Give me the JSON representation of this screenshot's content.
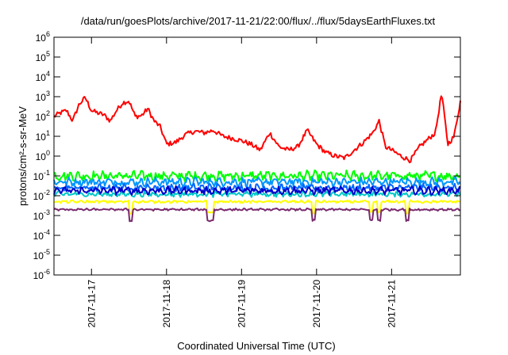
{
  "chart_data": {
    "type": "line",
    "title": "/data/run/goesPlots/archive/2017-11-21/22:00/flux/../flux/5daysEarthFluxes.txt",
    "xlabel": "Coordinated Universal Time (UTC)",
    "ylabel": "protons/cm²-s-sr-MeV",
    "y_scale": "log",
    "ylim_exp": [
      -6,
      6
    ],
    "y_ticks": [
      {
        "base": "10",
        "exp": "-6"
      },
      {
        "base": "10",
        "exp": "-5"
      },
      {
        "base": "10",
        "exp": "-4"
      },
      {
        "base": "10",
        "exp": "-3"
      },
      {
        "base": "10",
        "exp": "-2"
      },
      {
        "base": "10",
        "exp": "-1"
      },
      {
        "base": "10",
        "exp": "0"
      },
      {
        "base": "10",
        "exp": "1"
      },
      {
        "base": "10",
        "exp": "2"
      },
      {
        "base": "10",
        "exp": "3"
      },
      {
        "base": "10",
        "exp": "4"
      },
      {
        "base": "10",
        "exp": "5"
      },
      {
        "base": "10",
        "exp": "6"
      }
    ],
    "xlim": [
      "2017-11-16T12:00",
      "2017-11-21T22:00"
    ],
    "x_ticks": [
      {
        "label": "2017-11-17",
        "t": "2017-11-17T00:00"
      },
      {
        "label": "2017-11-18",
        "t": "2017-11-18T00:00"
      },
      {
        "label": "2017-11-19",
        "t": "2017-11-19T00:00"
      },
      {
        "label": "2017-11-20",
        "t": "2017-11-20T00:00"
      },
      {
        "label": "2017-11-21",
        "t": "2017-11-21T00:00"
      }
    ],
    "grid": false,
    "series": [
      {
        "color": "#ff0000",
        "t": [
          "2017-11-16T12:00",
          "2017-11-16T14:00",
          "2017-11-16T16:00",
          "2017-11-16T18:00",
          "2017-11-16T20:00",
          "2017-11-16T22:00",
          "2017-11-17T00:00",
          "2017-11-17T02:00",
          "2017-11-17T04:00",
          "2017-11-17T06:00",
          "2017-11-17T08:00",
          "2017-11-17T10:00",
          "2017-11-17T12:00",
          "2017-11-17T14:00",
          "2017-11-17T16:00",
          "2017-11-17T18:00",
          "2017-11-17T20:00",
          "2017-11-17T22:00",
          "2017-11-18T00:00",
          "2017-11-18T03:00",
          "2017-11-18T06:00",
          "2017-11-18T09:00",
          "2017-11-18T12:00",
          "2017-11-18T15:00",
          "2017-11-18T18:00",
          "2017-11-18T21:00",
          "2017-11-19T00:00",
          "2017-11-19T03:00",
          "2017-11-19T06:00",
          "2017-11-19T09:00",
          "2017-11-19T12:00",
          "2017-11-19T15:00",
          "2017-11-19T18:00",
          "2017-11-19T21:00",
          "2017-11-20T00:00",
          "2017-11-20T03:00",
          "2017-11-20T06:00",
          "2017-11-20T09:00",
          "2017-11-20T12:00",
          "2017-11-20T15:00",
          "2017-11-20T18:00",
          "2017-11-20T20:00",
          "2017-11-20T22:00",
          "2017-11-21T00:00",
          "2017-11-21T03:00",
          "2017-11-21T06:00",
          "2017-11-21T09:00",
          "2017-11-21T12:00",
          "2017-11-21T14:00",
          "2017-11-21T16:00",
          "2017-11-21T18:00",
          "2017-11-21T20:00",
          "2017-11-21T22:00"
        ],
        "values": [
          100,
          150,
          200,
          60,
          400,
          900,
          200,
          150,
          120,
          60,
          200,
          500,
          600,
          100,
          110,
          250,
          60,
          30,
          4,
          5,
          12,
          18,
          15,
          20,
          10,
          8,
          6,
          4,
          2,
          15,
          3,
          2,
          3,
          20,
          4,
          1.5,
          1,
          0.8,
          2,
          5,
          15,
          60,
          3,
          2,
          1,
          0.6,
          3,
          8,
          15,
          1500,
          4,
          10,
          600
        ],
        "wiggle": 0.12
      },
      {
        "color": "#00ff00",
        "level": 0.1,
        "wiggle": 0.18,
        "dips": false
      },
      {
        "color": "#0096ff",
        "level": 0.05,
        "wiggle": 0.16,
        "dips": false
      },
      {
        "color": "#0066ff",
        "level": 0.025,
        "wiggle": 0.14,
        "dips": false
      },
      {
        "color": "#00c8c8",
        "level": 0.012,
        "wiggle": 0.1,
        "dips": false
      },
      {
        "color": "#0000c8",
        "level": 0.018,
        "wiggle": 0.14,
        "dips": false
      },
      {
        "color": "#ffff00",
        "level": 0.005,
        "wiggle": 0.05,
        "dips": true
      },
      {
        "color": "#7a2a6e",
        "level": 0.002,
        "wiggle": 0.04,
        "dips": true
      }
    ]
  }
}
